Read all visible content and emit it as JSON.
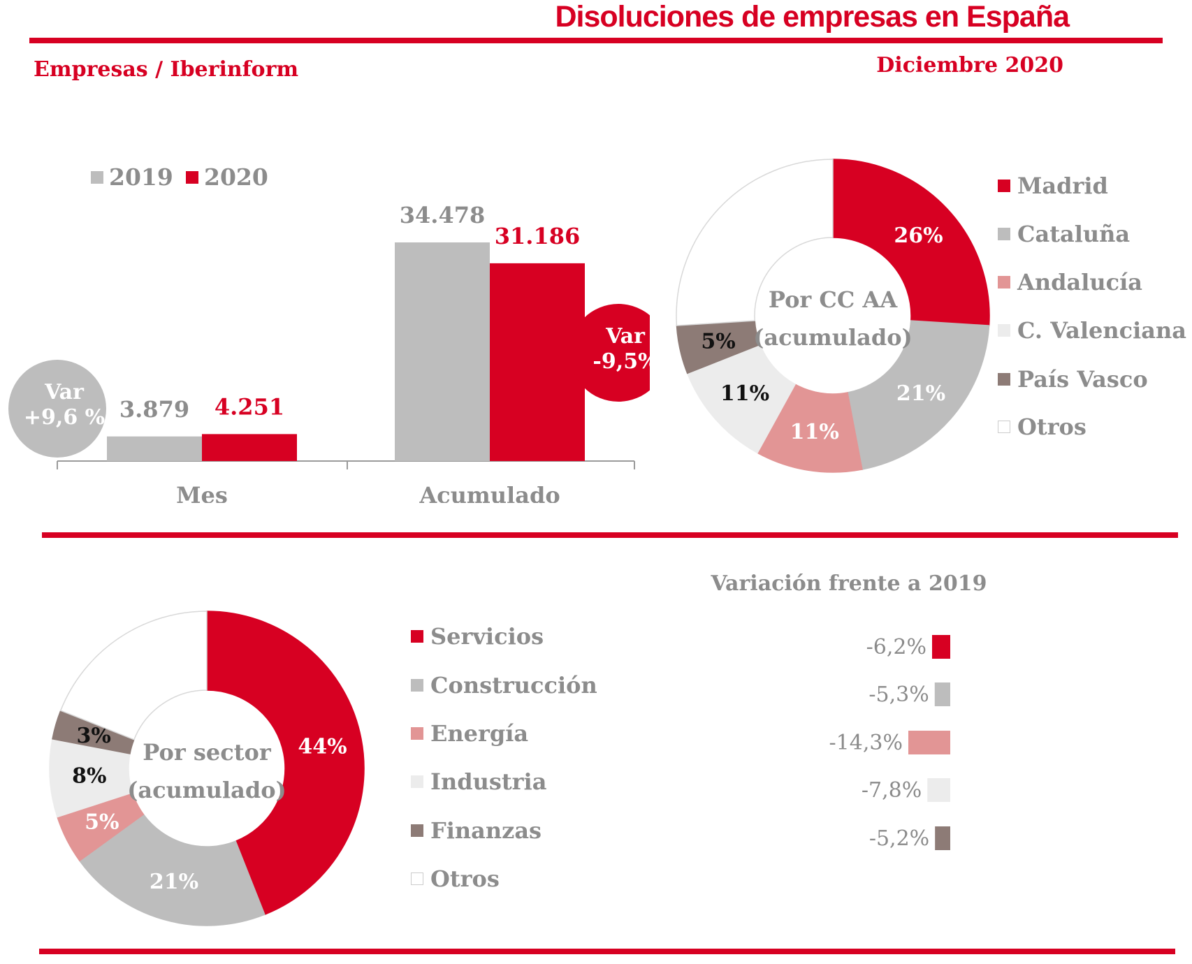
{
  "header": {
    "title": "Disoluciones de empresas en España",
    "source": "Empresas / Iberinform",
    "date": "Diciembre 2020"
  },
  "colors": {
    "red": "#d70022",
    "gray": "#bdbdbd",
    "pink": "#e29595",
    "light": "#ececec",
    "brown": "#8d7b76",
    "white": "#ffffff",
    "labelgray": "#8c8c8c"
  },
  "chart_data": [
    {
      "type": "bar",
      "categories": [
        "Mes",
        "Acumulado"
      ],
      "series": [
        {
          "name": "2019",
          "values": [
            3879,
            34478
          ],
          "labels": [
            "3.879",
            "34.478"
          ]
        },
        {
          "name": "2020",
          "values": [
            4251,
            31186
          ],
          "labels": [
            "4.251",
            "31.186"
          ]
        }
      ],
      "ylim": [
        0,
        34478
      ],
      "annotations": [
        {
          "line1": "Var",
          "line2": "+9,6 %"
        },
        {
          "line1": "Var",
          "line2": "-9,5%"
        }
      ]
    },
    {
      "type": "pie",
      "center_label": [
        "Por CC AA",
        "(acumulado)"
      ],
      "slices": [
        {
          "name": "Madrid",
          "value": 26,
          "label": "26%"
        },
        {
          "name": "Cataluña",
          "value": 21,
          "label": "21%"
        },
        {
          "name": "Andalucía",
          "value": 11,
          "label": "11%"
        },
        {
          "name": "C. Valenciana",
          "value": 11,
          "label": "11%"
        },
        {
          "name": "País Vasco",
          "value": 5,
          "label": "5%"
        },
        {
          "name": "Otros",
          "value": 26,
          "label": ""
        }
      ]
    },
    {
      "type": "pie",
      "center_label": [
        "Por sector",
        "(acumulado)"
      ],
      "slices": [
        {
          "name": "Servicios",
          "value": 44,
          "label": "44%"
        },
        {
          "name": "Construcción",
          "value": 21,
          "label": "21%"
        },
        {
          "name": "Energía",
          "value": 5,
          "label": "5%"
        },
        {
          "name": "Industria",
          "value": 8,
          "label": "8%"
        },
        {
          "name": "Finanzas",
          "value": 3,
          "label": "3%"
        },
        {
          "name": "Otros",
          "value": 19,
          "label": ""
        }
      ]
    },
    {
      "type": "bar",
      "title": "Variación frente a 2019",
      "categories": [
        "Servicios",
        "Construcción",
        "Energía",
        "Industria",
        "Finanzas"
      ],
      "values": [
        -6.2,
        -5.3,
        -14.3,
        -7.8,
        -5.2
      ],
      "labels": [
        "-6,2%",
        "-5,3%",
        "-14,3%",
        "-7,8%",
        "-5,2%"
      ]
    }
  ]
}
